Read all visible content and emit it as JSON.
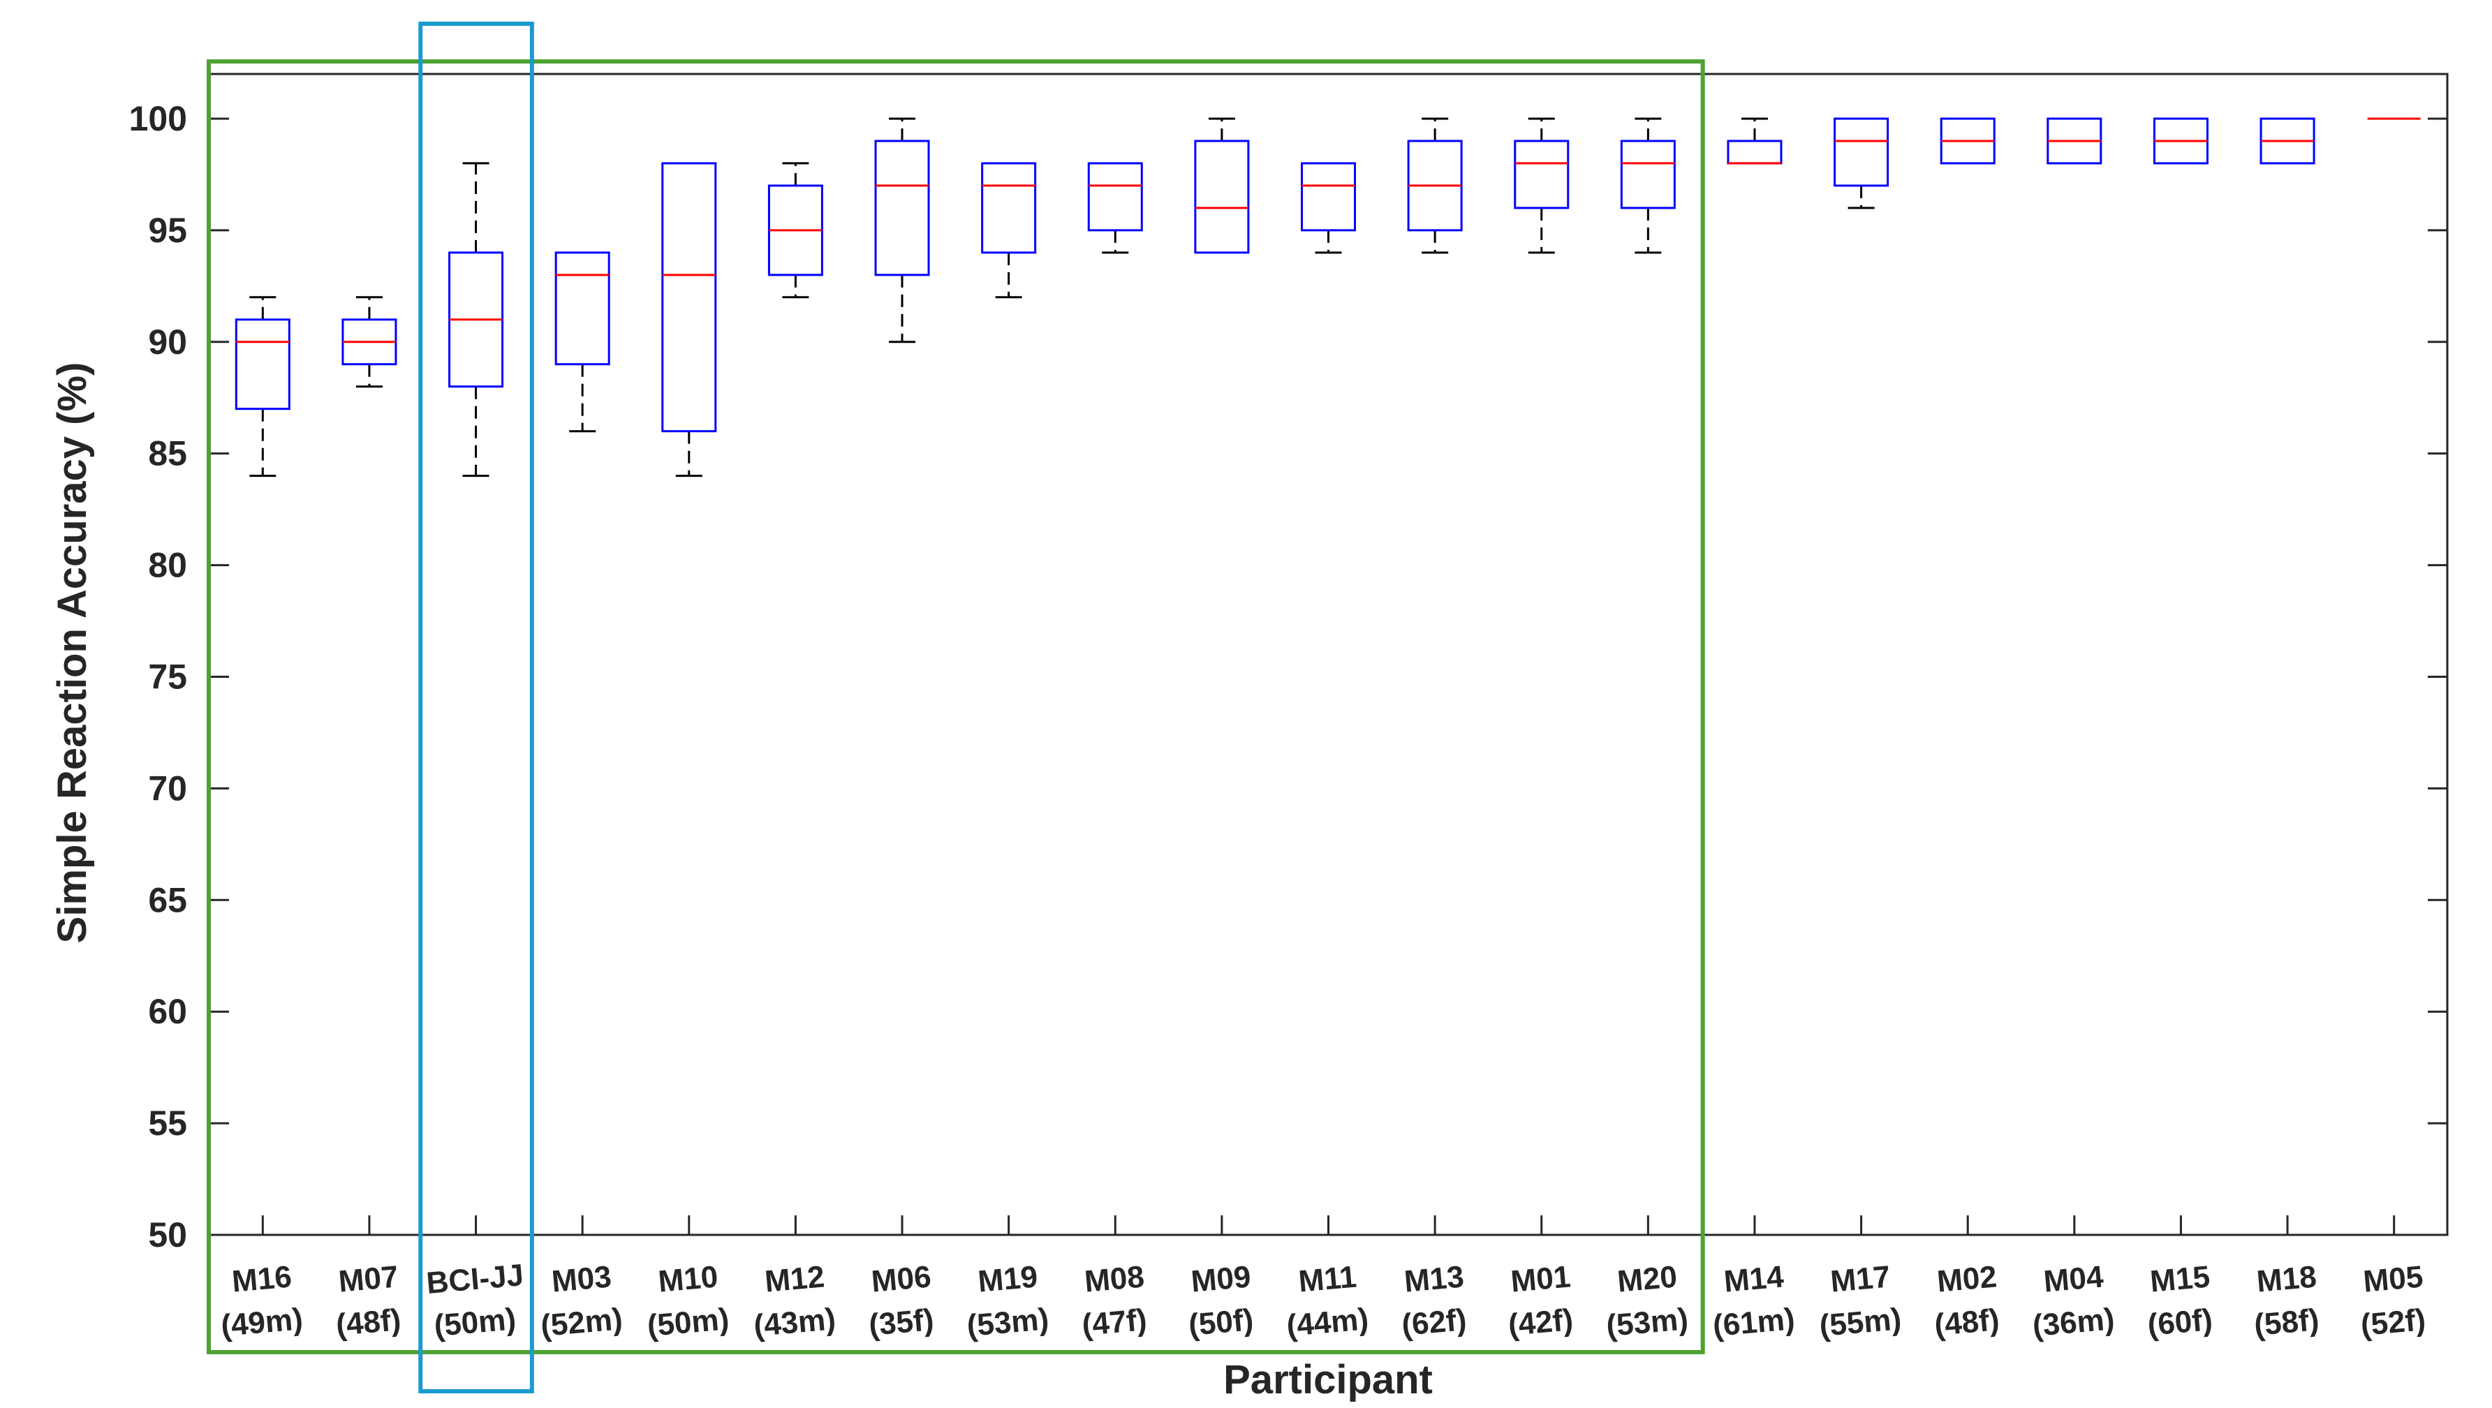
{
  "chart_data": {
    "type": "boxplot",
    "xlabel": "Participant",
    "ylabel": "Simple Reaction Accuracy (%)",
    "ylim": [
      50,
      102
    ],
    "yticks": [
      50,
      55,
      60,
      65,
      70,
      75,
      80,
      85,
      90,
      95,
      100
    ],
    "grid": false,
    "colors": {
      "box": "#0000ff",
      "median": "#ff0000",
      "whisker": "#000000",
      "axis": "#262626",
      "group_box": "#4ea232",
      "highlight_box": "#1a9bd0"
    },
    "categories": [
      {
        "id": "M16",
        "sub": "(49m)"
      },
      {
        "id": "M07",
        "sub": "(48f)"
      },
      {
        "id": "BCI-JJ",
        "sub": "(50m)"
      },
      {
        "id": "M03",
        "sub": "(52m)"
      },
      {
        "id": "M10",
        "sub": "(50m)"
      },
      {
        "id": "M12",
        "sub": "(43m)"
      },
      {
        "id": "M06",
        "sub": "(35f)"
      },
      {
        "id": "M19",
        "sub": "(53m)"
      },
      {
        "id": "M08",
        "sub": "(47f)"
      },
      {
        "id": "M09",
        "sub": "(50f)"
      },
      {
        "id": "M11",
        "sub": "(44m)"
      },
      {
        "id": "M13",
        "sub": "(62f)"
      },
      {
        "id": "M01",
        "sub": "(42f)"
      },
      {
        "id": "M20",
        "sub": "(53m)"
      },
      {
        "id": "M14",
        "sub": "(61m)"
      },
      {
        "id": "M17",
        "sub": "(55m)"
      },
      {
        "id": "M02",
        "sub": "(48f)"
      },
      {
        "id": "M04",
        "sub": "(36m)"
      },
      {
        "id": "M15",
        "sub": "(60f)"
      },
      {
        "id": "M18",
        "sub": "(58f)"
      },
      {
        "id": "M05",
        "sub": "(52f)"
      }
    ],
    "boxes": [
      {
        "min": 84,
        "q1": 87,
        "median": 90,
        "q3": 91,
        "max": 92
      },
      {
        "min": 88,
        "q1": 89,
        "median": 90,
        "q3": 91,
        "max": 92
      },
      {
        "min": 84,
        "q1": 88,
        "median": 91,
        "q3": 94,
        "max": 98
      },
      {
        "min": 86,
        "q1": 89,
        "median": 93,
        "q3": 94,
        "max": 94
      },
      {
        "min": 84,
        "q1": 86,
        "median": 93,
        "q3": 98,
        "max": 98
      },
      {
        "min": 92,
        "q1": 93,
        "median": 95,
        "q3": 97,
        "max": 98
      },
      {
        "min": 90,
        "q1": 93,
        "median": 97,
        "q3": 99,
        "max": 100
      },
      {
        "min": 92,
        "q1": 94,
        "median": 97,
        "q3": 98,
        "max": 98
      },
      {
        "min": 94,
        "q1": 95,
        "median": 97,
        "q3": 98,
        "max": 98
      },
      {
        "min": 94,
        "q1": 94,
        "median": 96,
        "q3": 99,
        "max": 100
      },
      {
        "min": 94,
        "q1": 95,
        "median": 97,
        "q3": 98,
        "max": 98
      },
      {
        "min": 94,
        "q1": 95,
        "median": 97,
        "q3": 99,
        "max": 100
      },
      {
        "min": 94,
        "q1": 96,
        "median": 98,
        "q3": 99,
        "max": 100
      },
      {
        "min": 94,
        "q1": 96,
        "median": 98,
        "q3": 99,
        "max": 100
      },
      {
        "min": 98,
        "q1": 98,
        "median": 98,
        "q3": 99,
        "max": 100
      },
      {
        "min": 96,
        "q1": 97,
        "median": 99,
        "q3": 100,
        "max": 100
      },
      {
        "min": 98,
        "q1": 98,
        "median": 99,
        "q3": 100,
        "max": 100
      },
      {
        "min": 98,
        "q1": 98,
        "median": 99,
        "q3": 100,
        "max": 100
      },
      {
        "min": 98,
        "q1": 98,
        "median": 99,
        "q3": 100,
        "max": 100
      },
      {
        "min": 98,
        "q1": 98,
        "median": 99,
        "q3": 100,
        "max": 100
      },
      {
        "min": 100,
        "q1": 100,
        "median": 100,
        "q3": 100,
        "max": 100
      }
    ],
    "highlights": [
      {
        "name": "group-box",
        "from_index": 0,
        "to_index": 13,
        "color": "#4ea232"
      },
      {
        "name": "highlight-box",
        "from_index": 2,
        "to_index": 2,
        "color": "#1a9bd0"
      }
    ]
  }
}
